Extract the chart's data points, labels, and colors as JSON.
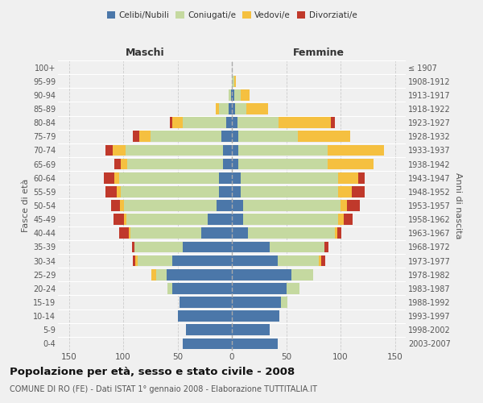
{
  "age_groups": [
    "0-4",
    "5-9",
    "10-14",
    "15-19",
    "20-24",
    "25-29",
    "30-34",
    "35-39",
    "40-44",
    "45-49",
    "50-54",
    "55-59",
    "60-64",
    "65-69",
    "70-74",
    "75-79",
    "80-84",
    "85-89",
    "90-94",
    "95-99",
    "100+"
  ],
  "birth_years": [
    "2003-2007",
    "1998-2002",
    "1993-1997",
    "1988-1992",
    "1983-1987",
    "1978-1982",
    "1973-1977",
    "1968-1972",
    "1963-1967",
    "1958-1962",
    "1953-1957",
    "1948-1952",
    "1943-1947",
    "1938-1942",
    "1933-1937",
    "1928-1932",
    "1923-1927",
    "1918-1922",
    "1913-1917",
    "1908-1912",
    "≤ 1907"
  ],
  "maschi": {
    "celibi": [
      45,
      42,
      50,
      48,
      55,
      60,
      55,
      45,
      28,
      22,
      14,
      12,
      12,
      8,
      8,
      10,
      5,
      3,
      1,
      0,
      0
    ],
    "coniugati": [
      0,
      0,
      0,
      0,
      4,
      10,
      32,
      45,
      65,
      75,
      85,
      90,
      92,
      88,
      90,
      65,
      40,
      9,
      2,
      0,
      0
    ],
    "vedovi": [
      0,
      0,
      0,
      0,
      0,
      4,
      2,
      0,
      2,
      2,
      4,
      4,
      4,
      6,
      12,
      10,
      10,
      3,
      0,
      0,
      0
    ],
    "divorziati": [
      0,
      0,
      0,
      0,
      0,
      0,
      2,
      2,
      9,
      10,
      8,
      10,
      10,
      6,
      6,
      6,
      2,
      0,
      0,
      0,
      0
    ]
  },
  "femmine": {
    "nubili": [
      42,
      35,
      44,
      45,
      50,
      55,
      42,
      35,
      15,
      10,
      10,
      8,
      8,
      6,
      6,
      6,
      5,
      3,
      2,
      0,
      0
    ],
    "coniugate": [
      0,
      0,
      0,
      6,
      12,
      20,
      38,
      50,
      80,
      88,
      90,
      90,
      90,
      82,
      82,
      55,
      38,
      10,
      6,
      2,
      0
    ],
    "vedove": [
      0,
      0,
      0,
      0,
      0,
      0,
      2,
      0,
      2,
      5,
      6,
      12,
      18,
      42,
      52,
      48,
      48,
      20,
      8,
      2,
      0
    ],
    "divorziate": [
      0,
      0,
      0,
      0,
      0,
      0,
      4,
      4,
      4,
      8,
      12,
      12,
      6,
      0,
      0,
      0,
      4,
      0,
      0,
      0,
      0
    ]
  },
  "colors": {
    "celibi_nubili": "#4b77a9",
    "coniugati": "#c5d9a0",
    "vedovi": "#f5c040",
    "divorziati": "#c0392b"
  },
  "title": "Popolazione per età, sesso e stato civile - 2008",
  "subtitle": "COMUNE DI RO (FE) - Dati ISTAT 1° gennaio 2008 - Elaborazione TUTTITALIA.IT",
  "xlabel_left": "Maschi",
  "xlabel_right": "Femmine",
  "ylabel_left": "Fasce di età",
  "ylabel_right": "Anni di nascita",
  "xlim": 160,
  "background_color": "#f0f0f0",
  "grid_color": "#cccccc"
}
